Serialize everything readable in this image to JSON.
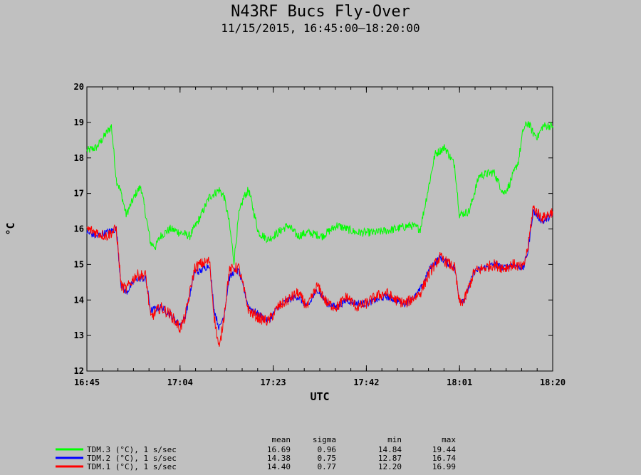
{
  "chart_data": {
    "type": "line",
    "title": "N43RF Bucs Fly-Over",
    "subtitle": "11/15/2015, 16:45:00–18:20:00",
    "xlabel": "UTC",
    "ylabel": "°C",
    "xlim": [
      "16:45",
      "18:20"
    ],
    "ylim": [
      12,
      20
    ],
    "x_ticks": [
      "16:45",
      "17:04",
      "17:23",
      "17:42",
      "18:01",
      "18:20"
    ],
    "y_ticks": [
      "12",
      "13",
      "14",
      "15",
      "16",
      "17",
      "18",
      "19",
      "20"
    ],
    "grid": false,
    "legend_position": "bottom-left",
    "stats_headers": [
      "mean",
      "sigma",
      "min",
      "max"
    ],
    "series": [
      {
        "name": "TDM.3 (°C), 1 s/sec",
        "color": "#00ff00",
        "stats": [
          "16.69",
          "0.96",
          "14.84",
          "19.44"
        ],
        "x": [
          "16:45",
          "16:47",
          "16:48",
          "16:50",
          "16:51",
          "16:52",
          "16:53",
          "16:55",
          "16:56",
          "16:58",
          "16:59",
          "17:00",
          "17:02",
          "17:04",
          "17:06",
          "17:08",
          "17:10",
          "17:12",
          "17:13",
          "17:14",
          "17:15",
          "17:16",
          "17:17",
          "17:18",
          "17:20",
          "17:22",
          "17:24",
          "17:26",
          "17:28",
          "17:30",
          "17:33",
          "17:36",
          "17:40",
          "17:44",
          "17:48",
          "17:51",
          "17:53",
          "17:56",
          "17:58",
          "18:00",
          "18:01",
          "18:03",
          "18:05",
          "18:08",
          "18:10",
          "18:11",
          "18:13",
          "18:14",
          "18:15",
          "18:16",
          "18:17",
          "18:18",
          "18:20"
        ],
        "y": [
          18.2,
          18.3,
          18.5,
          18.9,
          17.4,
          17.0,
          16.4,
          17.0,
          17.2,
          15.6,
          15.5,
          15.8,
          16.0,
          15.9,
          15.8,
          16.3,
          16.9,
          17.1,
          16.9,
          16.2,
          15.1,
          16.4,
          16.9,
          17.1,
          15.9,
          15.7,
          15.9,
          16.1,
          15.8,
          15.9,
          15.8,
          16.1,
          15.9,
          15.9,
          16.0,
          16.1,
          16.0,
          18.1,
          18.3,
          17.8,
          16.4,
          16.5,
          17.5,
          17.6,
          17.0,
          17.2,
          17.9,
          18.8,
          19.0,
          18.7,
          18.6,
          18.9,
          18.9
        ]
      },
      {
        "name": "TDM.2 (°C), 1 s/sec",
        "color": "#0000ff",
        "stats": [
          "14.38",
          "0.75",
          "12.87",
          "16.74"
        ],
        "x": [
          "16:45",
          "16:47",
          "16:49",
          "16:51",
          "16:52",
          "16:53",
          "16:55",
          "16:57",
          "16:58",
          "17:00",
          "17:02",
          "17:04",
          "17:05",
          "17:07",
          "17:08",
          "17:10",
          "17:11",
          "17:12",
          "17:13",
          "17:14",
          "17:15",
          "17:16",
          "17:18",
          "17:20",
          "17:22",
          "17:24",
          "17:26",
          "17:28",
          "17:30",
          "17:32",
          "17:34",
          "17:36",
          "17:38",
          "17:40",
          "17:42",
          "17:44",
          "17:46",
          "17:48",
          "17:50",
          "17:52",
          "17:53",
          "17:55",
          "17:57",
          "17:59",
          "18:00",
          "18:01",
          "18:02",
          "18:04",
          "18:06",
          "18:08",
          "18:10",
          "18:12",
          "18:14",
          "18:15",
          "18:16",
          "18:18",
          "18:20"
        ],
        "y": [
          15.9,
          15.8,
          15.9,
          16.0,
          14.4,
          14.2,
          14.6,
          14.6,
          13.7,
          13.8,
          13.6,
          13.3,
          13.5,
          14.8,
          14.8,
          15.0,
          13.7,
          13.2,
          13.6,
          14.6,
          14.8,
          14.8,
          13.8,
          13.6,
          13.4,
          13.8,
          14.0,
          14.1,
          13.8,
          14.3,
          13.9,
          13.8,
          14.0,
          13.9,
          13.9,
          14.0,
          14.1,
          14.0,
          13.9,
          14.1,
          14.3,
          14.9,
          15.2,
          15.0,
          14.9,
          14.0,
          14.0,
          14.8,
          14.9,
          15.0,
          14.9,
          15.0,
          14.9,
          15.4,
          16.5,
          16.2,
          16.4
        ]
      },
      {
        "name": "TDM.1 (°C), 1 s/sec",
        "color": "#ff0000",
        "stats": [
          "14.40",
          "0.77",
          "12.20",
          "16.99"
        ],
        "x": [
          "16:45",
          "16:47",
          "16:49",
          "16:51",
          "16:52",
          "16:53",
          "16:55",
          "16:57",
          "16:58",
          "17:00",
          "17:02",
          "17:04",
          "17:05",
          "17:07",
          "17:08",
          "17:10",
          "17:11",
          "17:12",
          "17:13",
          "17:14",
          "17:15",
          "17:16",
          "17:18",
          "17:20",
          "17:22",
          "17:24",
          "17:26",
          "17:28",
          "17:30",
          "17:32",
          "17:34",
          "17:36",
          "17:38",
          "17:40",
          "17:42",
          "17:44",
          "17:46",
          "17:48",
          "17:50",
          "17:52",
          "17:53",
          "17:55",
          "17:57",
          "17:59",
          "18:00",
          "18:01",
          "18:02",
          "18:04",
          "18:06",
          "18:08",
          "18:10",
          "18:12",
          "18:14",
          "18:15",
          "18:16",
          "18:18",
          "18:20"
        ],
        "y": [
          16.0,
          15.9,
          15.8,
          16.0,
          14.4,
          14.3,
          14.7,
          14.7,
          13.5,
          13.8,
          13.6,
          13.2,
          13.5,
          14.9,
          15.0,
          15.1,
          13.5,
          12.6,
          13.6,
          14.8,
          14.9,
          14.9,
          13.7,
          13.5,
          13.4,
          13.8,
          14.0,
          14.2,
          13.8,
          14.4,
          13.9,
          13.8,
          14.1,
          13.8,
          13.9,
          14.1,
          14.2,
          14.0,
          13.9,
          14.1,
          14.2,
          14.8,
          15.2,
          15.0,
          14.9,
          13.9,
          14.0,
          14.8,
          14.9,
          15.0,
          14.9,
          15.0,
          14.9,
          15.5,
          16.6,
          16.3,
          16.5
        ]
      }
    ]
  }
}
